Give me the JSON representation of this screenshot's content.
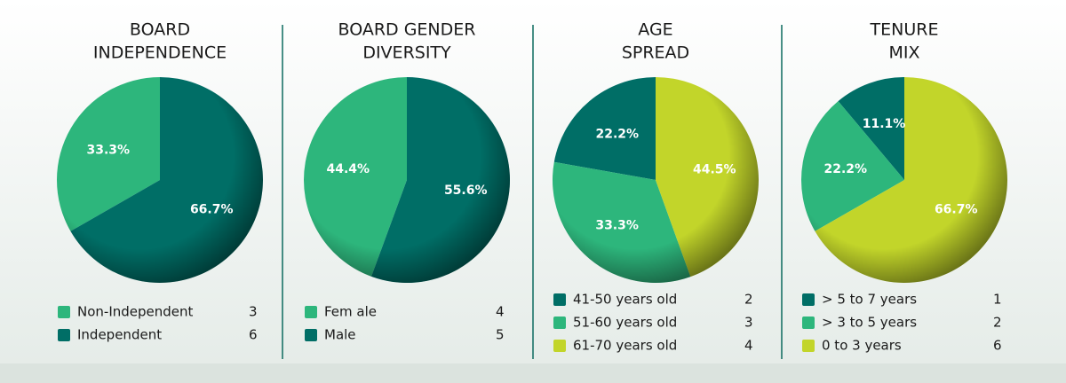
{
  "chart_data": [
    {
      "type": "pie",
      "title": [
        "BOARD",
        "INDEPENDENCE"
      ],
      "categories": [
        "Non-Independent",
        "Independent"
      ],
      "values": [
        33.3,
        66.7
      ],
      "value_labels": [
        "33.3%",
        "66.7%"
      ],
      "counts": [
        3,
        6
      ],
      "colors": [
        "#2db67c",
        "#006e66"
      ]
    },
    {
      "type": "pie",
      "title": [
        "BOARD GENDER",
        "DIVERSITY"
      ],
      "categories": [
        "Fem ale",
        "Male"
      ],
      "values": [
        44.4,
        55.6
      ],
      "value_labels": [
        "44.4%",
        "55.6%"
      ],
      "counts": [
        4,
        5
      ],
      "colors": [
        "#2db67c",
        "#006e66"
      ]
    },
    {
      "type": "pie",
      "title": [
        "AGE",
        "SPREAD"
      ],
      "categories": [
        "41-50 years old",
        "51-60 years old",
        "61-70 years old"
      ],
      "values": [
        22.2,
        33.3,
        44.5
      ],
      "value_labels": [
        "22.2%",
        "33.3%",
        "44.5%"
      ],
      "counts": [
        2,
        3,
        4
      ],
      "colors": [
        "#006e66",
        "#2db67c",
        "#c2d52a"
      ]
    },
    {
      "type": "pie",
      "title": [
        "TENURE",
        "MIX"
      ],
      "categories": [
        "> 5 to 7 years",
        "> 3 to 5 years",
        "0 to 3 years"
      ],
      "values": [
        11.1,
        22.2,
        66.7
      ],
      "value_labels": [
        "11.1%",
        "22.2%",
        "66.7%"
      ],
      "counts": [
        1,
        2,
        6
      ],
      "colors": [
        "#006e66",
        "#2db67c",
        "#c2d52a"
      ]
    }
  ]
}
